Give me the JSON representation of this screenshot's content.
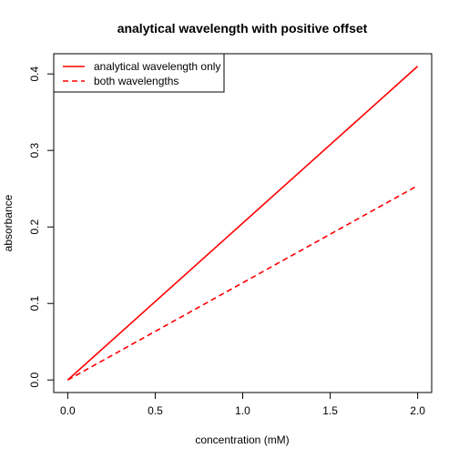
{
  "chart_data": {
    "type": "line",
    "title": "analytical wavelength with positive offset",
    "xlabel": "concentration (mM)",
    "ylabel": "absorbance",
    "xlim": [
      -0.08,
      2.08
    ],
    "ylim": [
      -0.0164,
      0.4264
    ],
    "x_ticks": [
      0.0,
      0.5,
      1.0,
      1.5,
      2.0
    ],
    "x_tick_labels": [
      "0.0",
      "0.5",
      "1.0",
      "1.5",
      "2.0"
    ],
    "y_ticks": [
      0.0,
      0.1,
      0.2,
      0.3,
      0.4
    ],
    "y_tick_labels": [
      "0.0",
      "0.1",
      "0.2",
      "0.3",
      "0.4"
    ],
    "grid": false,
    "legend_position": "top-left",
    "series": [
      {
        "name": "analytical wavelength only",
        "color": "#ff0000",
        "line_style": "solid",
        "x": [
          0,
          2
        ],
        "y": [
          0.0,
          0.41
        ]
      },
      {
        "name": "both wavelengths",
        "color": "#ff0000",
        "line_style": "dashed",
        "x": [
          0,
          2
        ],
        "y": [
          0.0,
          0.254
        ]
      }
    ]
  }
}
